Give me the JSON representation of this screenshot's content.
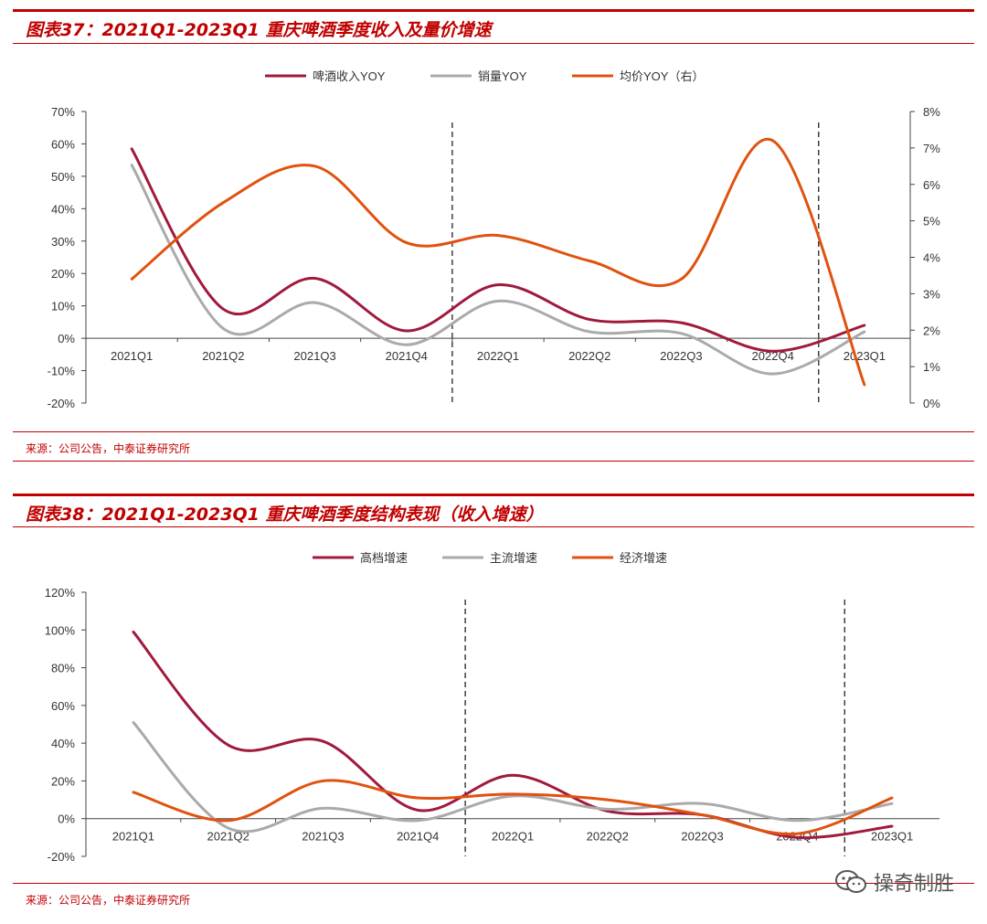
{
  "colors": {
    "accent": "#c00000",
    "series_dark_red": "#a01a3c",
    "series_gray": "#aaaaaa",
    "series_orange": "#e0520f"
  },
  "chart_data": [
    {
      "type": "line",
      "title": "图表37：2021Q1-2023Q1 重庆啤酒季度收入及量价增速",
      "source": "来源：公司公告，中泰证券研究所",
      "categories": [
        "2021Q1",
        "2021Q2",
        "2021Q3",
        "2021Q4",
        "2022Q1",
        "2022Q2",
        "2022Q3",
        "2022Q4",
        "2023Q1"
      ],
      "y_left": {
        "ticks": [
          "70%",
          "60%",
          "50%",
          "40%",
          "30%",
          "20%",
          "10%",
          "0%",
          "-10%",
          "-20%"
        ],
        "ylim": [
          -20,
          70
        ]
      },
      "y_right": {
        "ticks": [
          "8%",
          "7%",
          "6%",
          "5%",
          "4%",
          "3%",
          "2%",
          "1%",
          "0%"
        ],
        "ylim": [
          0,
          8
        ]
      },
      "divider_after": [
        "2021Q4",
        "2022Q4"
      ],
      "series": [
        {
          "name": "啤酒收入YOY",
          "axis": "left",
          "color": "#a01a3c",
          "values": [
            58.5,
            9,
            18.5,
            2.3,
            16.5,
            5.8,
            4.8,
            -4,
            4
          ]
        },
        {
          "name": "销量YOY",
          "axis": "left",
          "color": "#aaaaaa",
          "values": [
            53.5,
            3,
            11,
            -2,
            11.5,
            2,
            1.5,
            -11,
            2
          ]
        },
        {
          "name": "均价YOY（右）",
          "axis": "right",
          "color": "#e0520f",
          "values": [
            3.4,
            5.5,
            6.5,
            4.4,
            4.6,
            3.9,
            3.4,
            7.2,
            0.5
          ]
        }
      ]
    },
    {
      "type": "line",
      "title": "图表38：2021Q1-2023Q1 重庆啤酒季度结构表现（收入增速）",
      "source": "来源：公司公告，中泰证券研究所",
      "categories": [
        "2021Q1",
        "2021Q2",
        "2021Q3",
        "2021Q4",
        "2022Q1",
        "2022Q2",
        "2022Q3",
        "2022Q4",
        "2023Q1"
      ],
      "y_left": {
        "ticks": [
          "120%",
          "100%",
          "80%",
          "60%",
          "40%",
          "20%",
          "0%",
          "-20%"
        ],
        "ylim": [
          -20,
          120
        ]
      },
      "divider_after": [
        "2021Q4",
        "2022Q4"
      ],
      "series": [
        {
          "name": "高档增速",
          "color": "#a01a3c",
          "values": [
            99,
            39,
            41,
            4.5,
            23,
            4,
            2,
            -10,
            -4
          ]
        },
        {
          "name": "主流增速",
          "color": "#aaaaaa",
          "values": [
            51,
            -5,
            5.5,
            -1,
            12,
            5,
            8,
            -1,
            8
          ]
        },
        {
          "name": "经济增速",
          "color": "#e0520f",
          "values": [
            14,
            -1,
            20,
            11,
            13,
            10,
            2,
            -8,
            11
          ]
        }
      ]
    }
  ],
  "watermark": "操奇制胜"
}
